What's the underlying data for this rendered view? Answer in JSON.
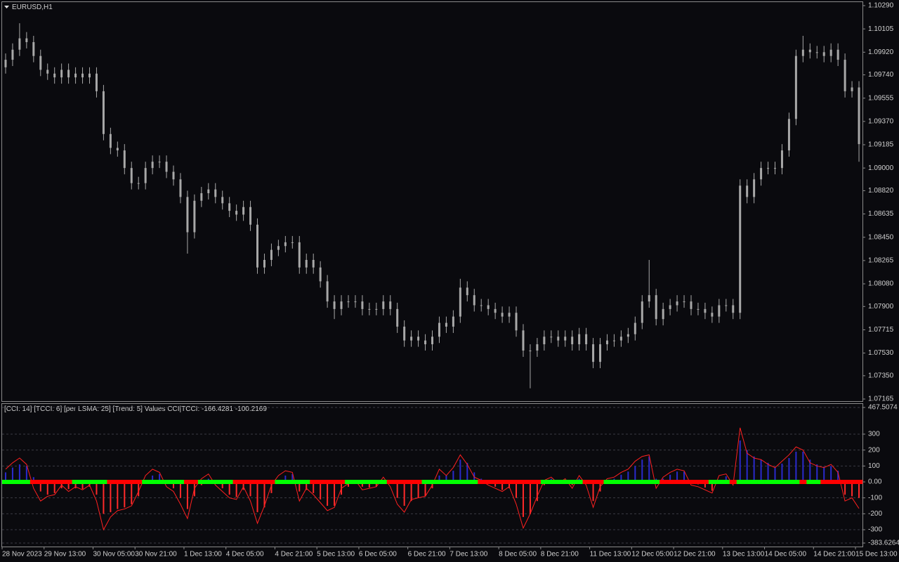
{
  "chart_data": [
    {
      "type": "candlestick",
      "title": "EURUSD,H1",
      "color": "#a8a8a8",
      "categories": [
        "28 Nov 2023",
        null,
        null,
        null,
        null,
        null,
        "29 Nov 13:00",
        null,
        null,
        null,
        null,
        null,
        null,
        "30 Nov 05:00",
        null,
        null,
        null,
        null,
        null,
        "30 Nov 21:00",
        null,
        null,
        null,
        null,
        null,
        null,
        "1 Dec 13:00",
        null,
        null,
        null,
        null,
        null,
        "4 Dec 05:00",
        null,
        null,
        null,
        null,
        null,
        null,
        "4 Dec 21:00",
        null,
        null,
        null,
        null,
        null,
        "5 Dec 13:00",
        null,
        null,
        null,
        null,
        null,
        "6 Dec 05:00",
        null,
        null,
        null,
        null,
        null,
        null,
        "6 Dec 21:00",
        null,
        null,
        null,
        null,
        null,
        "7 Dec 13:00",
        null,
        null,
        null,
        null,
        null,
        null,
        "8 Dec 05:00",
        null,
        null,
        null,
        null,
        null,
        "8 Dec 21:00",
        null,
        null,
        null,
        null,
        null,
        null,
        "11 Dec 13:00",
        null,
        null,
        null,
        null,
        null,
        "12 Dec 05:00",
        null,
        null,
        null,
        null,
        null,
        "12 Dec 21:00",
        null,
        null,
        null,
        null,
        null,
        null,
        "13 Dec 13:00",
        null,
        null,
        null,
        null,
        null,
        "14 Dec 05:00",
        null,
        null,
        null,
        null,
        null,
        null,
        "14 Dec 21:00",
        null,
        null,
        null,
        null,
        null,
        "15 Dec 13:00"
      ],
      "open": [
        1.098,
        1.0986,
        1.0994,
        1.1003,
        1.1,
        1.0989,
        1.0978,
        1.0975,
        1.0972,
        1.0978,
        1.0972,
        1.0975,
        1.0972,
        1.0975,
        1.0961,
        1.0927,
        1.0916,
        1.0914,
        1.09,
        1.0888,
        1.0888,
        1.09,
        1.0905,
        1.0905,
        1.0897,
        1.0891,
        1.0877,
        1.0849,
        1.0874,
        1.088,
        1.0883,
        1.0877,
        1.0872,
        1.0866,
        1.0863,
        1.0869,
        1.0855,
        1.0821,
        1.0827,
        1.0835,
        1.0838,
        1.0841,
        1.0841,
        1.0821,
        1.0827,
        1.0821,
        1.081,
        1.0794,
        1.0788,
        1.0794,
        1.0794,
        1.0794,
        1.0788,
        1.0788,
        1.0788,
        1.0794,
        1.0788,
        1.0774,
        1.0763,
        1.0766,
        1.0763,
        1.076,
        1.0766,
        1.0777,
        1.0774,
        1.0782,
        1.0805,
        1.0799,
        1.0791,
        1.0791,
        1.0788,
        1.0785,
        1.0782,
        1.0785,
        1.0771,
        1.0755,
        1.0755,
        1.076,
        1.0766,
        1.0766,
        1.0763,
        1.0766,
        1.076,
        1.0768,
        1.076,
        1.0746,
        1.076,
        1.0763,
        1.0763,
        1.0766,
        1.0768,
        1.0777,
        1.0794,
        1.0799,
        1.078,
        1.0788,
        1.0791,
        1.0794,
        1.0794,
        1.0788,
        1.0788,
        1.0785,
        1.0782,
        1.0791,
        1.0791,
        1.0785,
        1.0886,
        1.0877,
        1.0891,
        1.09,
        1.09,
        1.09,
        1.0914,
        1.0939,
        1.0989,
        1.0994,
        1.0992,
        1.0992,
        1.0989,
        1.0994,
        1.0986,
        1.0961,
        1.0964
      ],
      "high": [
        1.0991,
        1.0999,
        1.1015,
        1.1008,
        1.1005,
        1.0994,
        1.0983,
        1.098,
        1.0983,
        1.0983,
        1.098,
        1.098,
        1.098,
        1.098,
        1.0966,
        1.0932,
        1.0921,
        1.0919,
        1.0905,
        1.0893,
        1.0905,
        1.091,
        1.091,
        1.091,
        1.0902,
        1.0896,
        1.0882,
        1.0879,
        1.0885,
        1.0888,
        1.0888,
        1.0882,
        1.0877,
        1.0871,
        1.0874,
        1.0874,
        1.086,
        1.0832,
        1.084,
        1.0843,
        1.0846,
        1.0846,
        1.0846,
        1.0832,
        1.0832,
        1.0826,
        1.0815,
        1.0799,
        1.0799,
        1.0799,
        1.0799,
        1.0799,
        1.0793,
        1.0793,
        1.0799,
        1.0799,
        1.0793,
        1.0779,
        1.0771,
        1.0771,
        1.0768,
        1.0771,
        1.0782,
        1.0782,
        1.0787,
        1.0812,
        1.081,
        1.0804,
        1.0796,
        1.0796,
        1.0793,
        1.079,
        1.079,
        1.079,
        1.0776,
        1.076,
        1.0765,
        1.0771,
        1.0771,
        1.0771,
        1.0771,
        1.0771,
        1.0773,
        1.0773,
        1.0765,
        1.0765,
        1.0768,
        1.0768,
        1.0771,
        1.0773,
        1.0782,
        1.0799,
        1.0827,
        1.0804,
        1.0793,
        1.0796,
        1.0799,
        1.0799,
        1.0799,
        1.0793,
        1.0793,
        1.079,
        1.0796,
        1.0796,
        1.0796,
        1.0891,
        1.0891,
        1.0896,
        1.0905,
        1.0905,
        1.0905,
        1.0919,
        1.0944,
        1.0994,
        1.1005,
        1.0999,
        1.0997,
        1.0997,
        1.0999,
        1.0999,
        1.0991,
        1.0969,
        1.0969
      ],
      "low": [
        1.0975,
        1.0981,
        1.0989,
        1.0995,
        1.0984,
        1.0973,
        1.097,
        1.0967,
        1.0967,
        1.0967,
        1.0967,
        1.0967,
        1.0967,
        1.0956,
        1.0922,
        1.0911,
        1.0909,
        1.0895,
        1.0883,
        1.0883,
        1.0883,
        1.0895,
        1.09,
        1.0892,
        1.0886,
        1.0872,
        1.0832,
        1.0844,
        1.0869,
        1.0875,
        1.0872,
        1.0867,
        1.0861,
        1.0858,
        1.0858,
        1.085,
        1.0816,
        1.0816,
        1.0822,
        1.083,
        1.0833,
        1.0836,
        1.0816,
        1.0816,
        1.0816,
        1.0805,
        1.0789,
        1.078,
        1.0783,
        1.0789,
        1.0789,
        1.0783,
        1.0783,
        1.0783,
        1.0783,
        1.0783,
        1.0769,
        1.0758,
        1.0758,
        1.0758,
        1.0755,
        1.0755,
        1.0761,
        1.0769,
        1.0769,
        1.0777,
        1.0794,
        1.0786,
        1.0786,
        1.0783,
        1.078,
        1.0777,
        1.0777,
        1.0766,
        1.075,
        1.0725,
        1.075,
        1.0755,
        1.0761,
        1.0758,
        1.0758,
        1.0755,
        1.0755,
        1.0755,
        1.0741,
        1.0741,
        1.0755,
        1.0758,
        1.0758,
        1.0761,
        1.0763,
        1.0772,
        1.0789,
        1.0775,
        1.0775,
        1.0783,
        1.0786,
        1.0789,
        1.0783,
        1.0783,
        1.078,
        1.0777,
        1.0777,
        1.0786,
        1.078,
        1.078,
        1.0872,
        1.0872,
        1.0886,
        1.0895,
        1.0895,
        1.0895,
        1.0909,
        1.0934,
        1.0984,
        1.0987,
        1.0987,
        1.0984,
        1.0984,
        1.0981,
        1.0956,
        1.0956,
        1.0905
      ],
      "close": [
        1.0986,
        1.0994,
        1.1003,
        1.1,
        1.0989,
        1.0978,
        1.0975,
        1.0972,
        1.0978,
        1.0972,
        1.0975,
        1.0972,
        1.0975,
        1.0961,
        1.0927,
        1.0916,
        1.0914,
        1.09,
        1.0888,
        1.0888,
        1.09,
        1.0905,
        1.0905,
        1.0897,
        1.0891,
        1.0877,
        1.0849,
        1.0874,
        1.088,
        1.0883,
        1.0877,
        1.0872,
        1.0866,
        1.0863,
        1.0869,
        1.0855,
        1.0821,
        1.0827,
        1.0835,
        1.0838,
        1.0841,
        1.0841,
        1.0821,
        1.0827,
        1.0821,
        1.081,
        1.0794,
        1.0788,
        1.0794,
        1.0794,
        1.0794,
        1.0788,
        1.0788,
        1.0788,
        1.0794,
        1.0788,
        1.0774,
        1.0763,
        1.0766,
        1.0763,
        1.076,
        1.0766,
        1.0777,
        1.0774,
        1.0782,
        1.0805,
        1.0799,
        1.0791,
        1.0791,
        1.0788,
        1.0785,
        1.0782,
        1.0785,
        1.0771,
        1.0755,
        1.0755,
        1.076,
        1.0766,
        1.0766,
        1.0763,
        1.0766,
        1.076,
        1.0768,
        1.076,
        1.0746,
        1.076,
        1.0763,
        1.0763,
        1.0766,
        1.0768,
        1.0777,
        1.0794,
        1.0799,
        1.078,
        1.0788,
        1.0791,
        1.0794,
        1.0794,
        1.0788,
        1.0788,
        1.0785,
        1.0782,
        1.0791,
        1.0791,
        1.0785,
        1.0886,
        1.0877,
        1.0891,
        1.09,
        1.09,
        1.09,
        1.0914,
        1.0939,
        1.0989,
        1.0994,
        1.0992,
        1.0992,
        1.0989,
        1.0994,
        1.0986,
        1.0961,
        1.0964,
        1.0919
      ],
      "ylim": [
        1.07165,
        1.1029
      ],
      "yticks": [
        {
          "value": 1.1029,
          "label": "1.10290"
        },
        1.10105,
        {
          "value": 1.0992,
          "label": "1.09920"
        },
        {
          "value": 1.0974,
          "label": "1.09740"
        },
        1.09555,
        {
          "value": 1.0937,
          "label": "1.09370"
        },
        1.09185,
        {
          "value": 1.09,
          "label": "1.09000"
        },
        {
          "value": 1.0882,
          "label": "1.08820"
        },
        1.08635,
        {
          "value": 1.0845,
          "label": "1.08450"
        },
        1.08265,
        {
          "value": 1.0808,
          "label": "1.08080"
        },
        {
          "value": 1.079,
          "label": "1.07900"
        },
        1.07715,
        {
          "value": 1.0753,
          "label": "1.07530"
        },
        {
          "value": 1.0735,
          "label": "1.07350"
        },
        1.07165
      ],
      "grid": false
    },
    {
      "type": "combo",
      "title": "[CCI: 14] [TCCI: 6] [per LSMA: 25] [Trend: 5] Values CCI|TCCI: -166.4281 -100.2169",
      "series": [
        {
          "type": "histogram",
          "colors": [
            "#2a2acc",
            "#ff2a2a"
          ],
          "values": [
            60,
            90,
            110,
            100,
            30,
            -60,
            -80,
            -70,
            -40,
            -45,
            -40,
            -45,
            -30,
            -80,
            -200,
            -190,
            -170,
            -160,
            -140,
            -90,
            -10,
            40,
            50,
            0,
            -40,
            -100,
            -170,
            -90,
            -20,
            20,
            0,
            -40,
            -80,
            -95,
            -50,
            -90,
            -190,
            -160,
            -70,
            0,
            40,
            50,
            -60,
            -50,
            -70,
            -110,
            -150,
            -150,
            -80,
            -30,
            0,
            -30,
            -35,
            -30,
            10,
            -10,
            -100,
            -150,
            -120,
            -100,
            -90,
            -40,
            40,
            40,
            70,
            140,
            120,
            60,
            20,
            -10,
            -30,
            -50,
            -40,
            -100,
            -220,
            -200,
            -120,
            -20,
            20,
            0,
            10,
            -20,
            20,
            -10,
            -120,
            -60,
            0,
            20,
            45,
            65,
            100,
            140,
            160,
            20,
            20,
            45,
            65,
            65,
            10,
            -15,
            -35,
            -55,
            10,
            35,
            0,
            260,
            200,
            160,
            140,
            120,
            95,
            115,
            150,
            190,
            190,
            140,
            110,
            95,
            100,
            70,
            -80,
            -90,
            -100.2169
          ]
        },
        {
          "type": "line",
          "color": "#ff2020",
          "values": [
            80,
            120,
            150,
            110,
            -40,
            -120,
            -90,
            -80,
            -20,
            -60,
            -30,
            -50,
            -20,
            -120,
            -300,
            -220,
            -180,
            -170,
            -150,
            -60,
            40,
            80,
            60,
            -30,
            -60,
            -140,
            -230,
            -40,
            20,
            50,
            -20,
            -60,
            -100,
            -110,
            -30,
            -120,
            -260,
            -150,
            -20,
            40,
            70,
            60,
            -120,
            -40,
            -80,
            -130,
            -180,
            -160,
            -40,
            -10,
            10,
            -50,
            -40,
            -30,
            30,
            -30,
            -140,
            -190,
            -110,
            -100,
            -90,
            -20,
            80,
            40,
            90,
            170,
            110,
            30,
            10,
            -20,
            -40,
            -60,
            -30,
            -140,
            -290,
            -200,
            -90,
            10,
            30,
            -10,
            20,
            -40,
            40,
            -20,
            -160,
            -30,
            20,
            30,
            60,
            80,
            130,
            160,
            170,
            -40,
            30,
            60,
            80,
            70,
            -20,
            -30,
            -50,
            -70,
            40,
            50,
            -20,
            340,
            180,
            150,
            140,
            110,
            90,
            130,
            170,
            220,
            200,
            120,
            100,
            90,
            110,
            60,
            -120,
            -100,
            -166.4281
          ]
        },
        {
          "type": "trend",
          "colors": [
            "#00ff00",
            "#ff0000"
          ],
          "values": [
            1,
            1,
            1,
            1,
            -1,
            -1,
            -1,
            -1,
            -1,
            -1,
            1,
            1,
            1,
            1,
            1,
            -1,
            -1,
            -1,
            -1,
            -1,
            1,
            1,
            1,
            1,
            1,
            1,
            -1,
            -1,
            1,
            1,
            1,
            1,
            1,
            -1,
            -1,
            -1,
            -1,
            -1,
            -1,
            1,
            1,
            1,
            1,
            1,
            -1,
            -1,
            -1,
            -1,
            -1,
            1,
            1,
            1,
            1,
            1,
            1,
            -1,
            -1,
            -1,
            -1,
            -1,
            1,
            1,
            1,
            1,
            1,
            1,
            1,
            1,
            -1,
            -1,
            -1,
            -1,
            -1,
            -1,
            -1,
            -1,
            -1,
            1,
            1,
            1,
            1,
            1,
            1,
            -1,
            -1,
            -1,
            1,
            1,
            1,
            1,
            1,
            1,
            1,
            1,
            -1,
            -1,
            -1,
            -1,
            -1,
            -1,
            -1,
            1,
            1,
            1,
            -1,
            1,
            1,
            1,
            1,
            1,
            1,
            1,
            1,
            1,
            -1,
            1,
            1,
            -1,
            -1,
            -1,
            -1,
            -1,
            -1
          ]
        }
      ],
      "ylim": [
        -383.6264,
        467.5074
      ],
      "yticks": [
        467.5074,
        300,
        200,
        100,
        {
          "value": 0,
          "label": "0.00"
        },
        -100,
        -200,
        -300,
        -383.6264
      ],
      "grid": true
    }
  ]
}
